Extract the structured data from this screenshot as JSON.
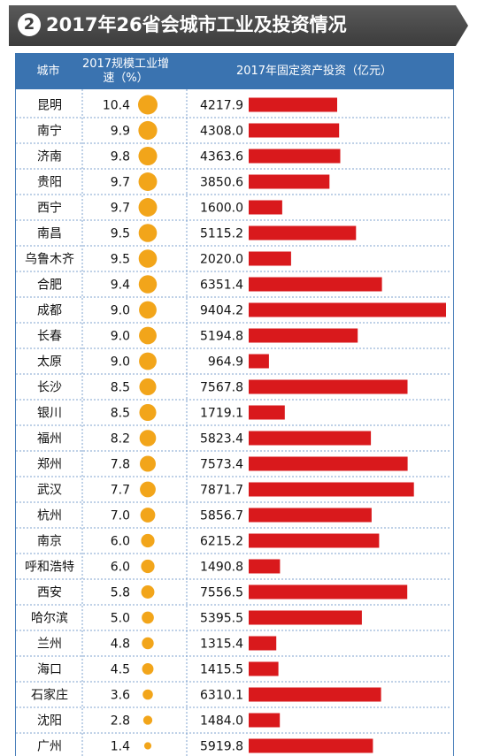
{
  "title": {
    "badge": "2",
    "text": "2017年26省会城市工业及投资情况"
  },
  "headers": {
    "city": "城市",
    "growth": "2017规模工业增速（%）",
    "invest": "2017年固定资产投资（亿元）"
  },
  "colors": {
    "header_bg": "#3a73b0",
    "bar": "#d9191c",
    "dot": "#f2a51a",
    "title_bg": "#444444",
    "row_divider": "#7fa3cf"
  },
  "chart_data": {
    "type": "table",
    "columns": [
      "城市",
      "2017规模工业增速（%）",
      "2017年固定资产投资（亿元）"
    ],
    "categories": [
      "昆明",
      "南宁",
      "济南",
      "贵阳",
      "西宁",
      "南昌",
      "乌鲁木齐",
      "合肥",
      "成都",
      "长春",
      "太原",
      "长沙",
      "银川",
      "福州",
      "郑州",
      "武汉",
      "杭州",
      "南京",
      "呼和浩特",
      "西安",
      "哈尔滨",
      "兰州",
      "海口",
      "石家庄",
      "沈阳",
      "广州"
    ],
    "growth_labels": [
      "10.4",
      "9.9",
      "9.8",
      "9.7",
      "9.7",
      "9.5",
      "9.5",
      "9.4",
      "9.0",
      "9.0",
      "9.0",
      "8.5",
      "8.5",
      "8.2",
      "7.8",
      "7.7",
      "7.0",
      "6.0",
      "6.0",
      "5.8",
      "5.0",
      "4.8",
      "4.5",
      "3.6",
      "2.8",
      "1.4"
    ],
    "invest_labels": [
      "4217.9",
      "4308.0",
      "4363.6",
      "3850.6",
      "1600.0",
      "5115.2",
      "2020.0",
      "6351.4",
      "9404.2",
      "5194.8",
      "964.9",
      "7567.8",
      "1719.1",
      "5823.4",
      "7573.4",
      "7871.7",
      "5856.7",
      "6215.2",
      "1490.8",
      "7556.5",
      "5395.5",
      "1315.4",
      "1415.5",
      "6310.1",
      "1484.0",
      "5919.8"
    ],
    "series": [
      {
        "name": "2017规模工业增速（%）",
        "values": [
          10.4,
          9.9,
          9.8,
          9.7,
          9.7,
          9.5,
          9.5,
          9.4,
          9.0,
          9.0,
          9.0,
          8.5,
          8.5,
          8.2,
          7.8,
          7.7,
          7.0,
          6.0,
          6.0,
          5.8,
          5.0,
          4.8,
          4.5,
          3.6,
          2.8,
          1.4
        ]
      },
      {
        "name": "2017年固定资产投资（亿元）",
        "values": [
          4217.9,
          4308.0,
          4363.6,
          3850.6,
          1600.0,
          5115.2,
          2020.0,
          6351.4,
          9404.2,
          5194.8,
          964.9,
          7567.8,
          1719.1,
          5823.4,
          7573.4,
          7871.7,
          5856.7,
          6215.2,
          1490.8,
          7556.5,
          5395.5,
          1315.4,
          1415.5,
          6310.1,
          1484.0,
          5919.8
        ]
      }
    ]
  }
}
